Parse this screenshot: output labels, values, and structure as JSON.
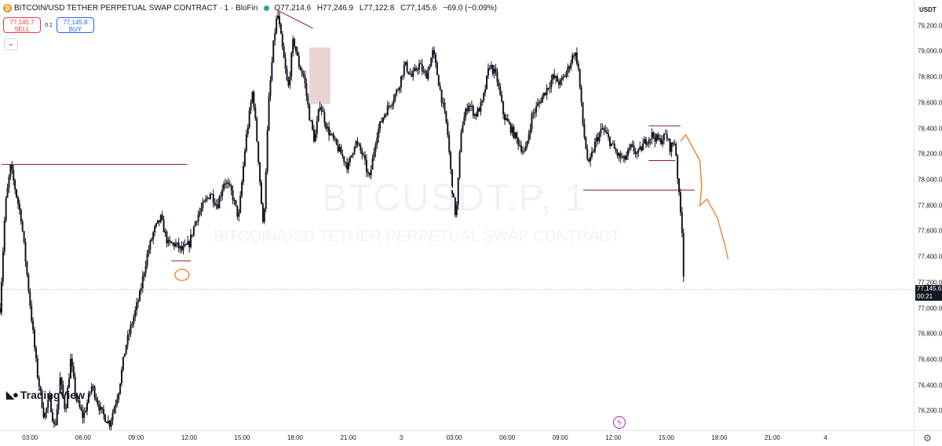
{
  "header": {
    "symbol_title": "BITCOIN/USD TETHER PERPETUAL SWAP CONTRACT · 1 · BloFin",
    "coin_glyph": "₿",
    "ohlc": {
      "open": "O77,214.6",
      "high": "H77,246.9",
      "low": "L77,122.8",
      "close": "C77,145.6",
      "change": "−69.0 (−0.09%)"
    },
    "status_color": "#26a69a"
  },
  "trade": {
    "sell_price": "77,145.7",
    "sell_label": "SELL",
    "spread": "0.1",
    "buy_price": "77,145.8",
    "buy_label": "BUY",
    "collapse_glyph": "⌄"
  },
  "watermark": {
    "ticker": "BTCUSDT.P, 1",
    "description": "BITCOIN/USD TETHER PERPETUAL SWAP CONTRACT"
  },
  "branding": {
    "logo_text": "TradingView",
    "logo_icon": "tradingview-logo-icon"
  },
  "price_axis": {
    "currency": "USDT",
    "last_price": "77,145.6",
    "countdown": "00:21",
    "settings_icon": "gear-icon"
  },
  "events": {
    "icon": "lightning-icon",
    "color": "#9c27b0"
  },
  "chart_data": {
    "type": "candlestick",
    "ylim": [
      76050,
      79400
    ],
    "y_ticks": [
      {
        "v": 79200,
        "label": "79,200.0"
      },
      {
        "v": 79000,
        "label": "79,000.0"
      },
      {
        "v": 78800,
        "label": "78,800.0"
      },
      {
        "v": 78600,
        "label": "78,600.0"
      },
      {
        "v": 78400,
        "label": "78,400.0"
      },
      {
        "v": 78200,
        "label": "78,200.0"
      },
      {
        "v": 78000,
        "label": "78,000.0"
      },
      {
        "v": 77800,
        "label": "77,800.0"
      },
      {
        "v": 77600,
        "label": "77,600.0"
      },
      {
        "v": 77400,
        "label": "77,400.0"
      },
      {
        "v": 77200,
        "label": "77,200.0"
      },
      {
        "v": 77000,
        "label": "77,000.0"
      },
      {
        "v": 76800,
        "label": "76,800.0"
      },
      {
        "v": 76600,
        "label": "76,600.0"
      },
      {
        "v": 76400,
        "label": "76,400.0"
      },
      {
        "v": 76200,
        "label": "76,200.0"
      }
    ],
    "x_range_hours": [
      1.3,
      53.0
    ],
    "x_ticks": [
      {
        "h": 3,
        "label": "03:00"
      },
      {
        "h": 6,
        "label": "06:00"
      },
      {
        "h": 9,
        "label": "09:00"
      },
      {
        "h": 12,
        "label": "12:00"
      },
      {
        "h": 15,
        "label": "15:00"
      },
      {
        "h": 18,
        "label": "18:00"
      },
      {
        "h": 21,
        "label": "21:00"
      },
      {
        "h": 24,
        "label": "3"
      },
      {
        "h": 27,
        "label": "03:00"
      },
      {
        "h": 30,
        "label": "06:00"
      },
      {
        "h": 33,
        "label": "09:00"
      },
      {
        "h": 36,
        "label": "12:00"
      },
      {
        "h": 39,
        "label": "15:00"
      },
      {
        "h": 42,
        "label": "18:00"
      },
      {
        "h": 45,
        "label": "21:00"
      },
      {
        "h": 48,
        "label": "4"
      }
    ],
    "price_path": [
      [
        1.3,
        77000
      ],
      [
        1.6,
        77800
      ],
      [
        1.9,
        78100
      ],
      [
        2.2,
        77900
      ],
      [
        2.5,
        77700
      ],
      [
        2.8,
        77300
      ],
      [
        3.1,
        76900
      ],
      [
        3.4,
        76500
      ],
      [
        3.8,
        76150
      ],
      [
        4.1,
        76300
      ],
      [
        4.4,
        76050
      ],
      [
        4.7,
        76450
      ],
      [
        5.0,
        76200
      ],
      [
        5.3,
        76600
      ],
      [
        5.6,
        76300
      ],
      [
        6.0,
        76150
      ],
      [
        6.5,
        76400
      ],
      [
        7.0,
        76200
      ],
      [
        7.5,
        76100
      ],
      [
        8.0,
        76350
      ],
      [
        8.4,
        76700
      ],
      [
        8.8,
        76900
      ],
      [
        9.2,
        77100
      ],
      [
        9.6,
        77400
      ],
      [
        10.0,
        77600
      ],
      [
        10.4,
        77700
      ],
      [
        10.8,
        77500
      ],
      [
        11.2,
        77500
      ],
      [
        11.6,
        77450
      ],
      [
        12.0,
        77500
      ],
      [
        12.4,
        77700
      ],
      [
        12.8,
        77800
      ],
      [
        13.2,
        77900
      ],
      [
        13.6,
        77800
      ],
      [
        14.0,
        78000
      ],
      [
        14.4,
        77900
      ],
      [
        14.8,
        77700
      ],
      [
        15.2,
        78300
      ],
      [
        15.6,
        78700
      ],
      [
        15.9,
        78200
      ],
      [
        16.2,
        77600
      ],
      [
        16.5,
        78600
      ],
      [
        16.8,
        79100
      ],
      [
        17.0,
        79300
      ],
      [
        17.3,
        79000
      ],
      [
        17.6,
        78700
      ],
      [
        17.9,
        79100
      ],
      [
        18.2,
        78900
      ],
      [
        18.5,
        78800
      ],
      [
        18.8,
        78500
      ],
      [
        19.1,
        78300
      ],
      [
        19.4,
        78600
      ],
      [
        19.8,
        78400
      ],
      [
        20.2,
        78300
      ],
      [
        20.6,
        78200
      ],
      [
        21.0,
        78100
      ],
      [
        21.4,
        78300
      ],
      [
        21.8,
        78200
      ],
      [
        22.2,
        78000
      ],
      [
        22.6,
        78350
      ],
      [
        23.0,
        78500
      ],
      [
        23.4,
        78600
      ],
      [
        23.8,
        78700
      ],
      [
        24.2,
        78900
      ],
      [
        24.6,
        78800
      ],
      [
        25.0,
        78900
      ],
      [
        25.4,
        78800
      ],
      [
        25.8,
        79000
      ],
      [
        26.2,
        78700
      ],
      [
        26.6,
        78400
      ],
      [
        26.9,
        77900
      ],
      [
        27.1,
        77700
      ],
      [
        27.4,
        78400
      ],
      [
        27.8,
        78600
      ],
      [
        28.2,
        78500
      ],
      [
        28.6,
        78600
      ],
      [
        29.0,
        78900
      ],
      [
        29.4,
        78800
      ],
      [
        29.8,
        78500
      ],
      [
        30.2,
        78400
      ],
      [
        30.6,
        78300
      ],
      [
        31.0,
        78200
      ],
      [
        31.4,
        78500
      ],
      [
        31.8,
        78600
      ],
      [
        32.2,
        78700
      ],
      [
        32.6,
        78800
      ],
      [
        33.0,
        78750
      ],
      [
        33.4,
        78850
      ],
      [
        33.8,
        79000
      ],
      [
        34.0,
        78900
      ],
      [
        34.3,
        78400
      ],
      [
        34.6,
        78100
      ],
      [
        35.0,
        78300
      ],
      [
        35.4,
        78400
      ],
      [
        35.8,
        78300
      ],
      [
        36.2,
        78200
      ],
      [
        36.6,
        78150
      ],
      [
        37.0,
        78250
      ],
      [
        37.4,
        78200
      ],
      [
        37.8,
        78300
      ],
      [
        38.2,
        78350
      ],
      [
        38.6,
        78300
      ],
      [
        39.0,
        78350
      ],
      [
        39.2,
        78250
      ],
      [
        39.5,
        78300
      ],
      [
        39.7,
        77900
      ],
      [
        39.9,
        77600
      ],
      [
        40.0,
        77150
      ]
    ],
    "annotations": {
      "h_lines": [
        {
          "y": 78120,
          "x1": 1.4,
          "x2": 11.9
        },
        {
          "y": 77370,
          "x1": 11.0,
          "x2": 12.1
        },
        {
          "y": 77920,
          "x1": 34.3,
          "x2": 40.6
        },
        {
          "y": 78420,
          "x1": 38.0,
          "x2": 39.8
        },
        {
          "y": 78150,
          "x1": 38.0,
          "x2": 39.5
        }
      ],
      "diag_lines": [
        {
          "x1": 17.0,
          "y1": 79320,
          "x2": 19.0,
          "y2": 79180
        }
      ],
      "zones": [
        {
          "x1": 18.8,
          "x2": 20.0,
          "y1": 78590,
          "y2": 79030
        }
      ],
      "projection": [
        [
          39.8,
          78300
        ],
        [
          40.1,
          78350
        ],
        [
          40.5,
          78250
        ],
        [
          40.9,
          78150
        ],
        [
          41.0,
          77950
        ],
        [
          40.9,
          77800
        ],
        [
          41.3,
          77850
        ],
        [
          41.9,
          77700
        ],
        [
          42.3,
          77500
        ],
        [
          42.5,
          77380
        ]
      ],
      "circle": {
        "x": 11.6,
        "y": 77260
      }
    },
    "last_price": 77145.6
  }
}
